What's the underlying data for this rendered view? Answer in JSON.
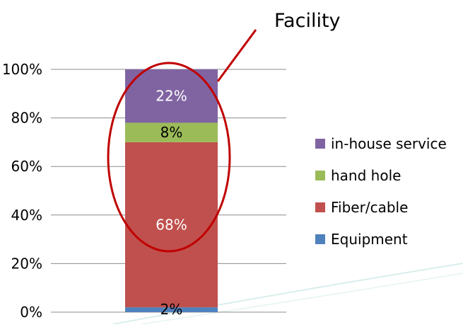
{
  "annotation": {
    "label": "Facility",
    "color": "#C00000"
  },
  "chart_data": {
    "type": "bar",
    "stacked": true,
    "categories": [
      ""
    ],
    "ylim": [
      0,
      100
    ],
    "y_ticks": [
      0,
      20,
      40,
      60,
      80,
      100
    ],
    "y_tick_labels": [
      "0%",
      "20%",
      "40%",
      "60%",
      "80%",
      "100%"
    ],
    "grid": true,
    "legend_position": "right",
    "series": [
      {
        "name": "Equipment",
        "values": [
          2
        ],
        "label": "2%",
        "color": "#4F81BD"
      },
      {
        "name": "Fiber/cable",
        "values": [
          68
        ],
        "label": "68%",
        "color": "#C0504D"
      },
      {
        "name": "hand hole",
        "values": [
          8
        ],
        "label": "8%",
        "color": "#9BBB59"
      },
      {
        "name": "in-house service",
        "values": [
          22
        ],
        "label": "22%",
        "color": "#8064A2"
      }
    ]
  }
}
